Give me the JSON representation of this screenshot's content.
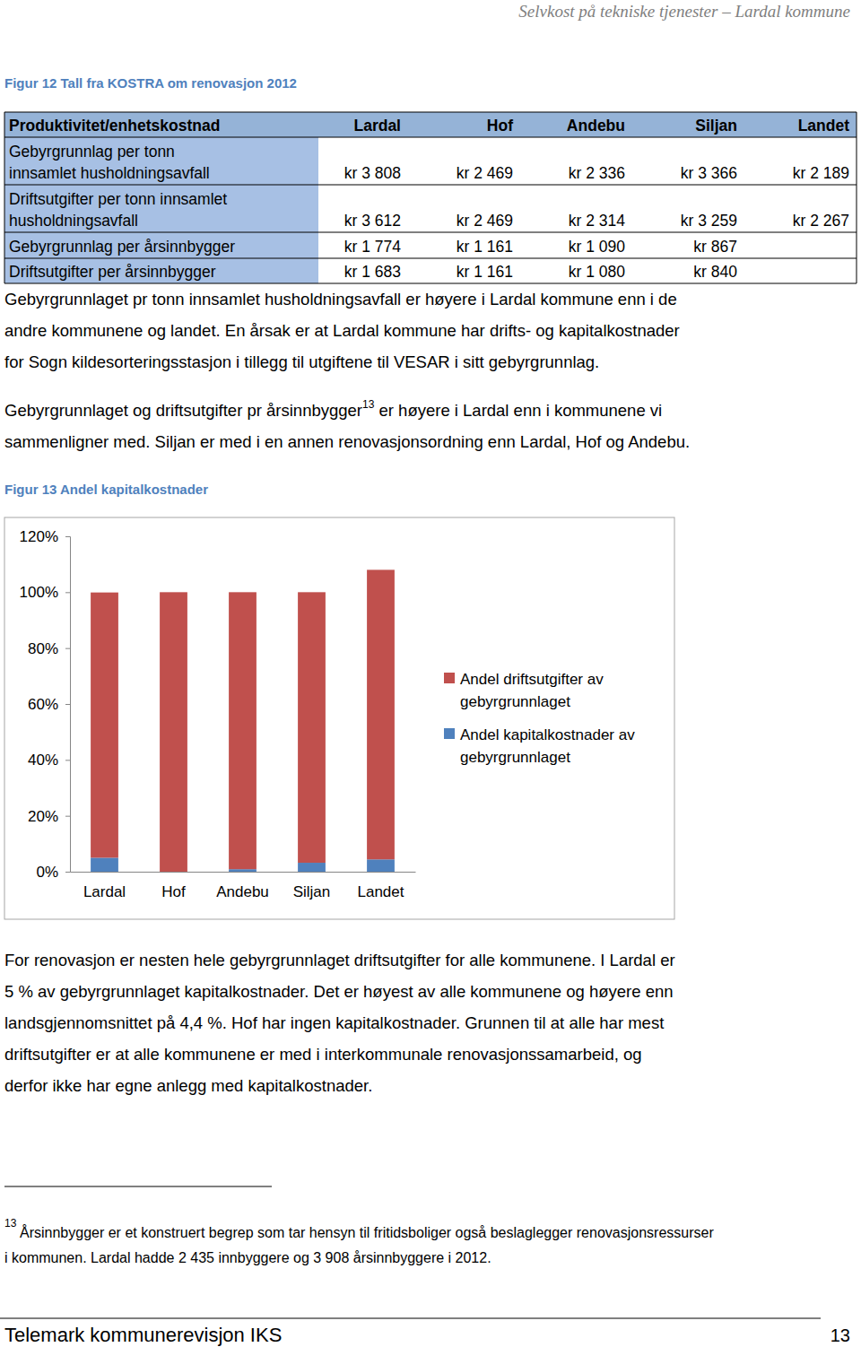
{
  "header": {
    "running_title": "Selvkost på tekniske tjenester – Lardal kommune"
  },
  "table": {
    "caption": "Figur 12 Tall fra KOSTRA om renovasjon 2012",
    "columns": [
      "Produktivitet/enhetskostnad",
      "Lardal",
      "Hof",
      "Andebu",
      "Siljan",
      "Landet"
    ],
    "rows": [
      {
        "label": [
          "Gebyrgrunnlag per tonn",
          "innsamlet husholdningsavfall"
        ],
        "cells": [
          "kr 3 808",
          "kr 2 469",
          "kr 2 336",
          "kr 3 366",
          "kr 2 189"
        ]
      },
      {
        "label": [
          "Driftsutgifter per tonn innsamlet",
          "husholdningsavfall"
        ],
        "cells": [
          "kr 3 612",
          "kr 2 469",
          "kr 2 314",
          "kr 3 259",
          "kr 2 267"
        ]
      },
      {
        "label": [
          "Gebyrgrunnlag per årsinnbygger"
        ],
        "cells": [
          "kr 1 774",
          "kr 1 161",
          "kr 1 090",
          "kr 867",
          null
        ]
      },
      {
        "label": [
          "Driftsutgifter per årsinnbygger"
        ],
        "cells": [
          "kr 1 683",
          "kr 1 161",
          "kr 1 080",
          "kr 840",
          null
        ]
      }
    ]
  },
  "paragraphs": [
    {
      "lines": [
        "Gebyrgrunnlaget pr tonn innsamlet husholdningsavfall er høyere i Lardal kommune enn i de",
        "andre kommunene og landet. En årsak er at Lardal kommune har drifts- og kapitalkostnader",
        "for Sogn kildesorteringsstasjon i tillegg til utgiftene til VESAR i sitt gebyrgrunnlag."
      ]
    },
    {
      "lines": [
        {
          "before": "Gebyrgrunnlaget og driftsutgifter pr årsinnbygger",
          "footnote_ref": "13",
          "after": " er høyere i Lardal enn i kommunene vi"
        },
        "sammenligner med. Siljan er med i en annen renovasjonsordning enn Lardal, Hof og Andebu."
      ]
    }
  ],
  "chart_data": {
    "type": "bar",
    "title": "Figur 13 Andel kapitalkostnader",
    "categories": [
      "Lardal",
      "Hof",
      "Andebu",
      "Siljan",
      "Landet"
    ],
    "stacked": true,
    "legend": "right",
    "grid": false,
    "series": [
      {
        "name": "Andel kapitalkostnader av gebyrgrunnlaget",
        "color": "#4f81bd",
        "values": [
          5,
          0,
          0.9,
          3.2,
          4.4
        ]
      },
      {
        "name": "Andel driftsutgifter av gebyrgrunnlaget",
        "color": "#c0504d",
        "values": [
          94.9,
          100,
          99.1,
          96.8,
          103.6
        ]
      }
    ],
    "ylim": [
      0,
      120
    ],
    "yticks": [
      {
        "value": 0,
        "label": "0%"
      },
      {
        "value": 20,
        "label": "20%"
      },
      {
        "value": 40,
        "label": "40%"
      },
      {
        "value": 60,
        "label": "60%"
      },
      {
        "value": 80,
        "label": "80%"
      },
      {
        "value": 100,
        "label": "100%"
      },
      {
        "value": 120,
        "label": "120%"
      }
    ]
  },
  "paragraphs_after": [
    {
      "lines": [
        "For renovasjon er nesten hele gebyrgrunnlaget driftsutgifter for alle kommunene. I Lardal er",
        "5 % av gebyrgrunnlaget kapitalkostnader. Det er høyest av alle kommunene og høyere enn",
        "landsgjennomsnittet på 4,4 %. Hof har ingen kapitalkostnader.  Grunnen til at alle har mest",
        "driftsutgifter er at alle kommunene er med i interkommunale renovasjonssamarbeid, og",
        "derfor ikke har egne anlegg med kapitalkostnader."
      ]
    }
  ],
  "footnote": {
    "marker": "13",
    "lines": [
      "Årsinnbygger er et konstruert begrep som tar hensyn til fritidsboliger også beslaglegger renovasjonsressurser",
      "i kommunen. Lardal hadde 2 435 innbyggere og 3 908 årsinnbyggere i 2012."
    ]
  },
  "footer": {
    "left": "Telemark kommunerevisjon IKS",
    "page": "13"
  }
}
